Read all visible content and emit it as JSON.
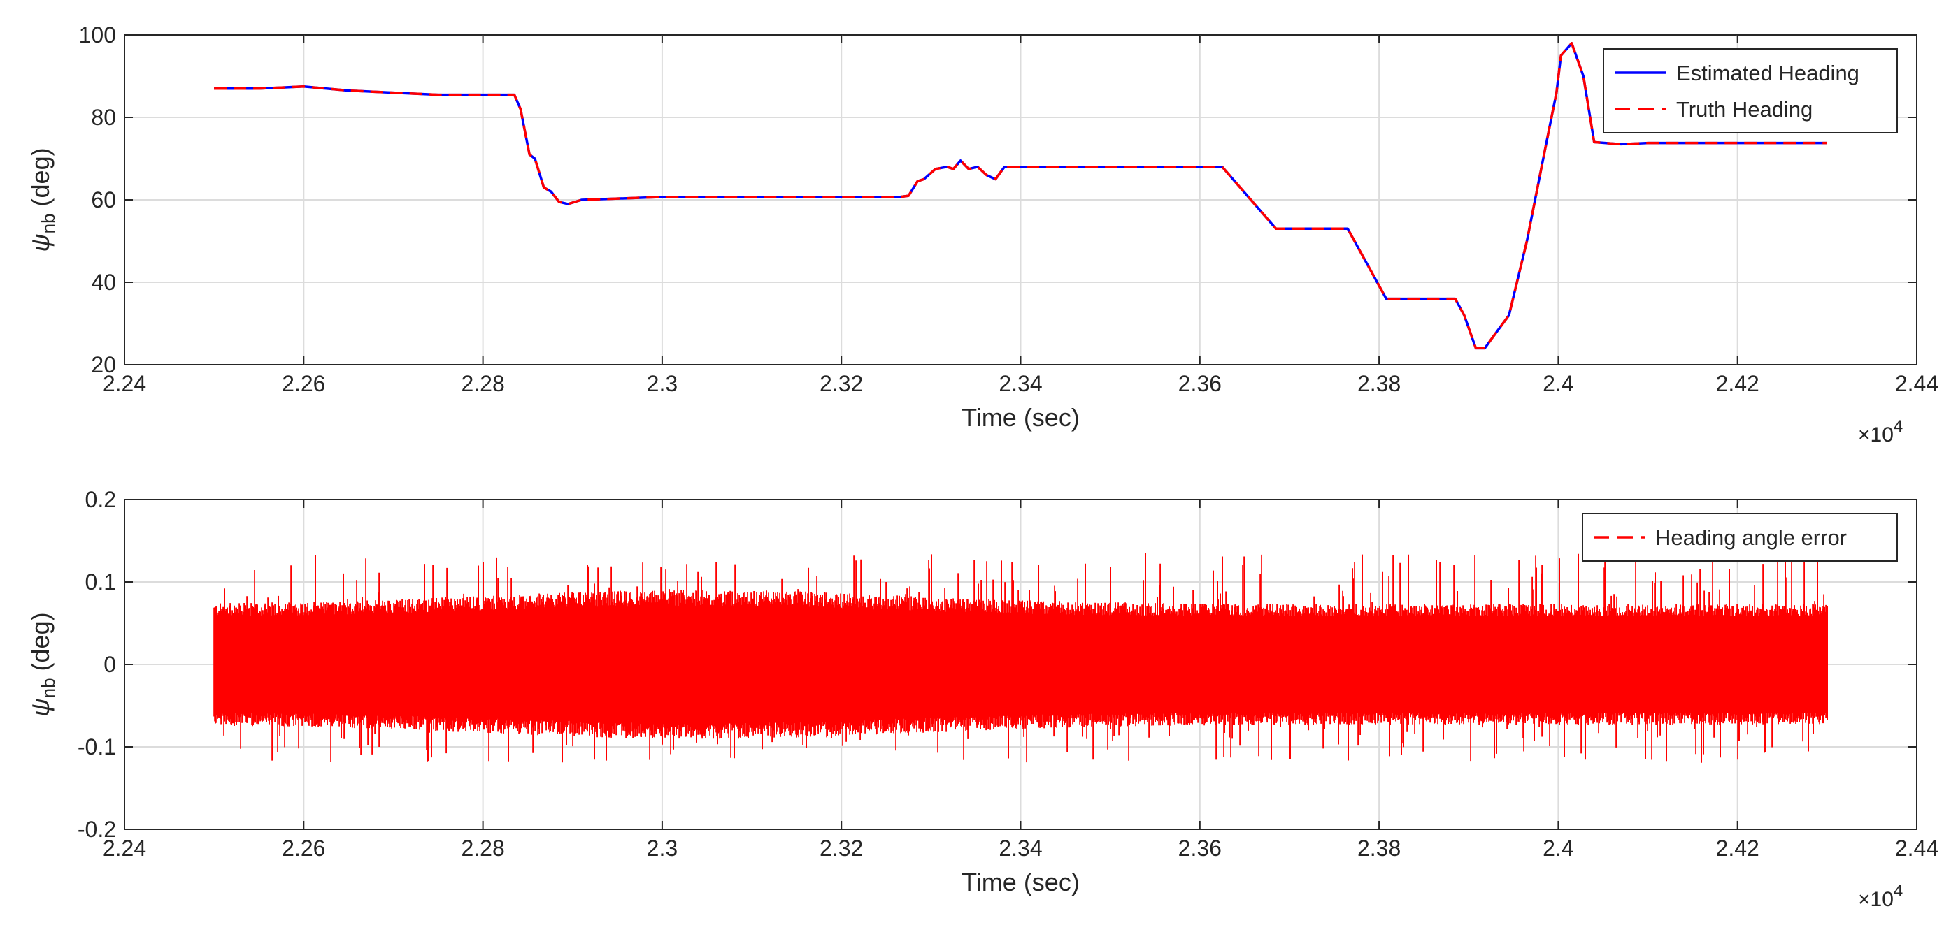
{
  "chart_data": [
    {
      "type": "line",
      "xlabel": "Time (sec)",
      "ylabel_symbol": "ψ",
      "ylabel_sub": "nb",
      "ylabel_unit": " (deg)",
      "x_multiplier": "×10",
      "x_exponent": "4",
      "xlim": [
        2.24,
        2.44
      ],
      "ylim": [
        20,
        100
      ],
      "xticks": [
        "2.24",
        "2.26",
        "2.28",
        "2.3",
        "2.32",
        "2.34",
        "2.36",
        "2.38",
        "2.4",
        "2.42",
        "2.44"
      ],
      "yticks": [
        "20",
        "40",
        "60",
        "80",
        "100"
      ],
      "grid": true,
      "legend_position": "top-right",
      "series": [
        {
          "name": "Estimated Heading",
          "color": "#0000ff",
          "style": "solid",
          "x": [
            2.25,
            2.255,
            2.26,
            2.265,
            2.27,
            2.275,
            2.28,
            2.2835,
            2.2842,
            2.2852,
            2.2858,
            2.2868,
            2.2876,
            2.2885,
            2.2895,
            2.291,
            2.3,
            2.31,
            2.32,
            2.3265,
            2.3275,
            2.3285,
            2.3292,
            2.3305,
            2.3318,
            2.3325,
            2.3333,
            2.3342,
            2.3352,
            2.3362,
            2.3372,
            2.3382,
            2.3395,
            2.345,
            2.35,
            2.355,
            2.3625,
            2.3685,
            2.371,
            2.3765,
            2.3808,
            2.386,
            2.3885,
            2.3895,
            2.3908,
            2.3918,
            2.3928,
            2.3945,
            2.3965,
            2.3985,
            2.3998,
            2.4003,
            2.4015,
            2.4028,
            2.404,
            2.407,
            2.41,
            2.42,
            2.43
          ],
          "y": [
            87,
            87,
            87.5,
            86.5,
            86,
            85.5,
            85.5,
            85.5,
            82,
            71,
            70,
            63,
            62,
            59.5,
            59,
            60,
            60.7,
            60.7,
            60.7,
            60.7,
            61,
            64.5,
            65,
            67.5,
            68,
            67.5,
            69.5,
            67.5,
            68,
            66,
            65,
            68,
            68,
            68,
            68,
            68,
            68,
            53,
            53,
            53,
            36,
            36,
            36,
            32,
            24,
            24,
            27,
            32,
            50,
            72,
            86,
            95,
            98,
            90,
            74,
            73.5,
            73.8,
            73.8,
            73.8
          ]
        },
        {
          "name": "Truth Heading",
          "color": "#ff0000",
          "style": "dashed",
          "x": [
            2.25,
            2.255,
            2.26,
            2.265,
            2.27,
            2.275,
            2.28,
            2.2835,
            2.2842,
            2.2852,
            2.2858,
            2.2868,
            2.2876,
            2.2885,
            2.2895,
            2.291,
            2.3,
            2.31,
            2.32,
            2.3265,
            2.3275,
            2.3285,
            2.3292,
            2.3305,
            2.3318,
            2.3325,
            2.3333,
            2.3342,
            2.3352,
            2.3362,
            2.3372,
            2.3382,
            2.3395,
            2.345,
            2.35,
            2.355,
            2.3625,
            2.3685,
            2.371,
            2.3765,
            2.3808,
            2.386,
            2.3885,
            2.3895,
            2.3908,
            2.3918,
            2.3928,
            2.3945,
            2.3965,
            2.3985,
            2.3998,
            2.4003,
            2.4015,
            2.4028,
            2.404,
            2.407,
            2.41,
            2.42,
            2.43
          ],
          "y": [
            87,
            87,
            87.5,
            86.5,
            86,
            85.5,
            85.5,
            85.5,
            82,
            71,
            70,
            63,
            62,
            59.5,
            59,
            60,
            60.7,
            60.7,
            60.7,
            60.7,
            61,
            64.5,
            65,
            67.5,
            68,
            67.5,
            69.5,
            67.5,
            68,
            66,
            65,
            68,
            68,
            68,
            68,
            68,
            68,
            53,
            53,
            53,
            36,
            36,
            36,
            32,
            24,
            24,
            27,
            32,
            50,
            72,
            86,
            95,
            98,
            90,
            74,
            73.5,
            73.8,
            73.8,
            73.8
          ]
        }
      ]
    },
    {
      "type": "line",
      "xlabel": "Time (sec)",
      "ylabel_symbol": "ψ",
      "ylabel_sub": "nb",
      "ylabel_unit": " (deg)",
      "x_multiplier": "×10",
      "x_exponent": "4",
      "xlim": [
        2.24,
        2.44
      ],
      "ylim": [
        -0.2,
        0.2
      ],
      "xticks": [
        "2.24",
        "2.26",
        "2.28",
        "2.3",
        "2.32",
        "2.34",
        "2.36",
        "2.38",
        "2.4",
        "2.42",
        "2.44"
      ],
      "yticks": [
        "-0.2",
        "-0.1",
        "0",
        "0.1",
        "0.2"
      ],
      "grid": true,
      "legend_position": "top-right",
      "series": [
        {
          "name": "Heading angle error",
          "color": "#ff0000",
          "style": "dashed",
          "noise": {
            "x_start": 2.25,
            "x_end": 2.43,
            "mean": 0,
            "dense_band": [
              -0.075,
              0.075
            ],
            "peak_range": [
              -0.12,
              0.135
            ]
          }
        }
      ]
    }
  ]
}
